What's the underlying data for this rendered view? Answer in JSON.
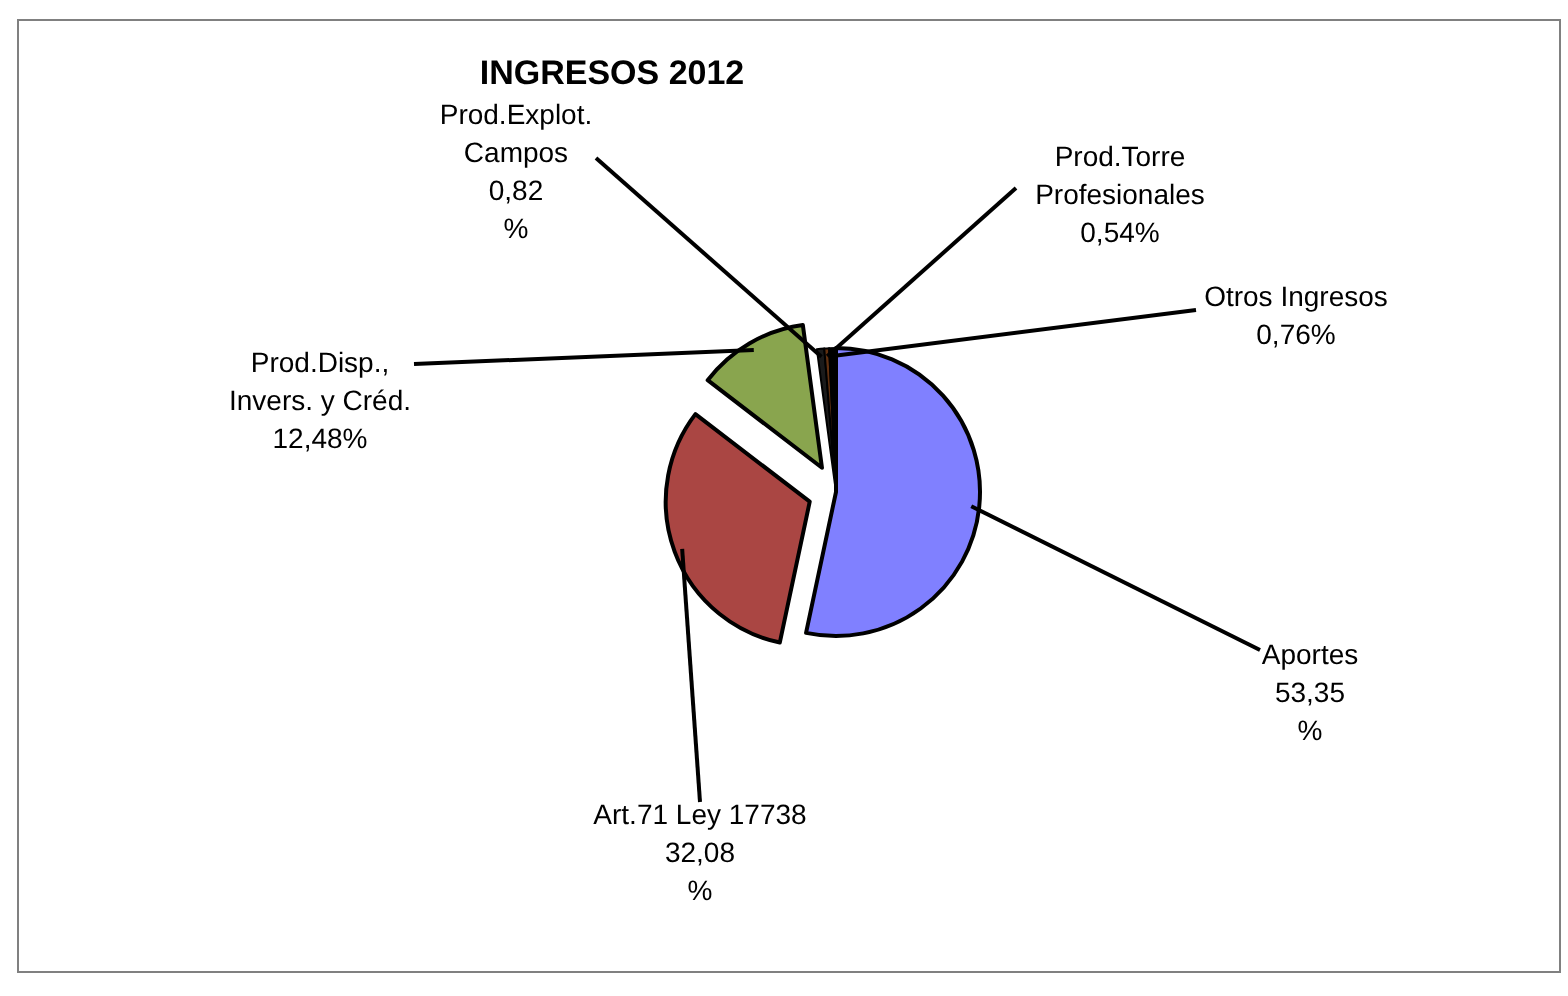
{
  "chart_data": {
    "type": "pie",
    "title": "INGRESOS  2012",
    "categories": [
      "Aportes",
      "Art.71 Ley 17738",
      "Prod.Disp., Invers. y Créd.",
      "Prod.Explot. Campos",
      "Prod.Torre Profesionales",
      "Otros Ingresos"
    ],
    "values": [
      53.35,
      32.08,
      12.48,
      0.82,
      0.54,
      0.76
    ],
    "colors": [
      "#8080ff",
      "#aa4643",
      "#89a54e",
      "#1a1a1a",
      "#603010",
      "#000000"
    ],
    "value_labels": [
      "53,35 %",
      "32,08 %",
      "12,48%",
      "0,82 %",
      "0,54%",
      "0,76%"
    ]
  }
}
